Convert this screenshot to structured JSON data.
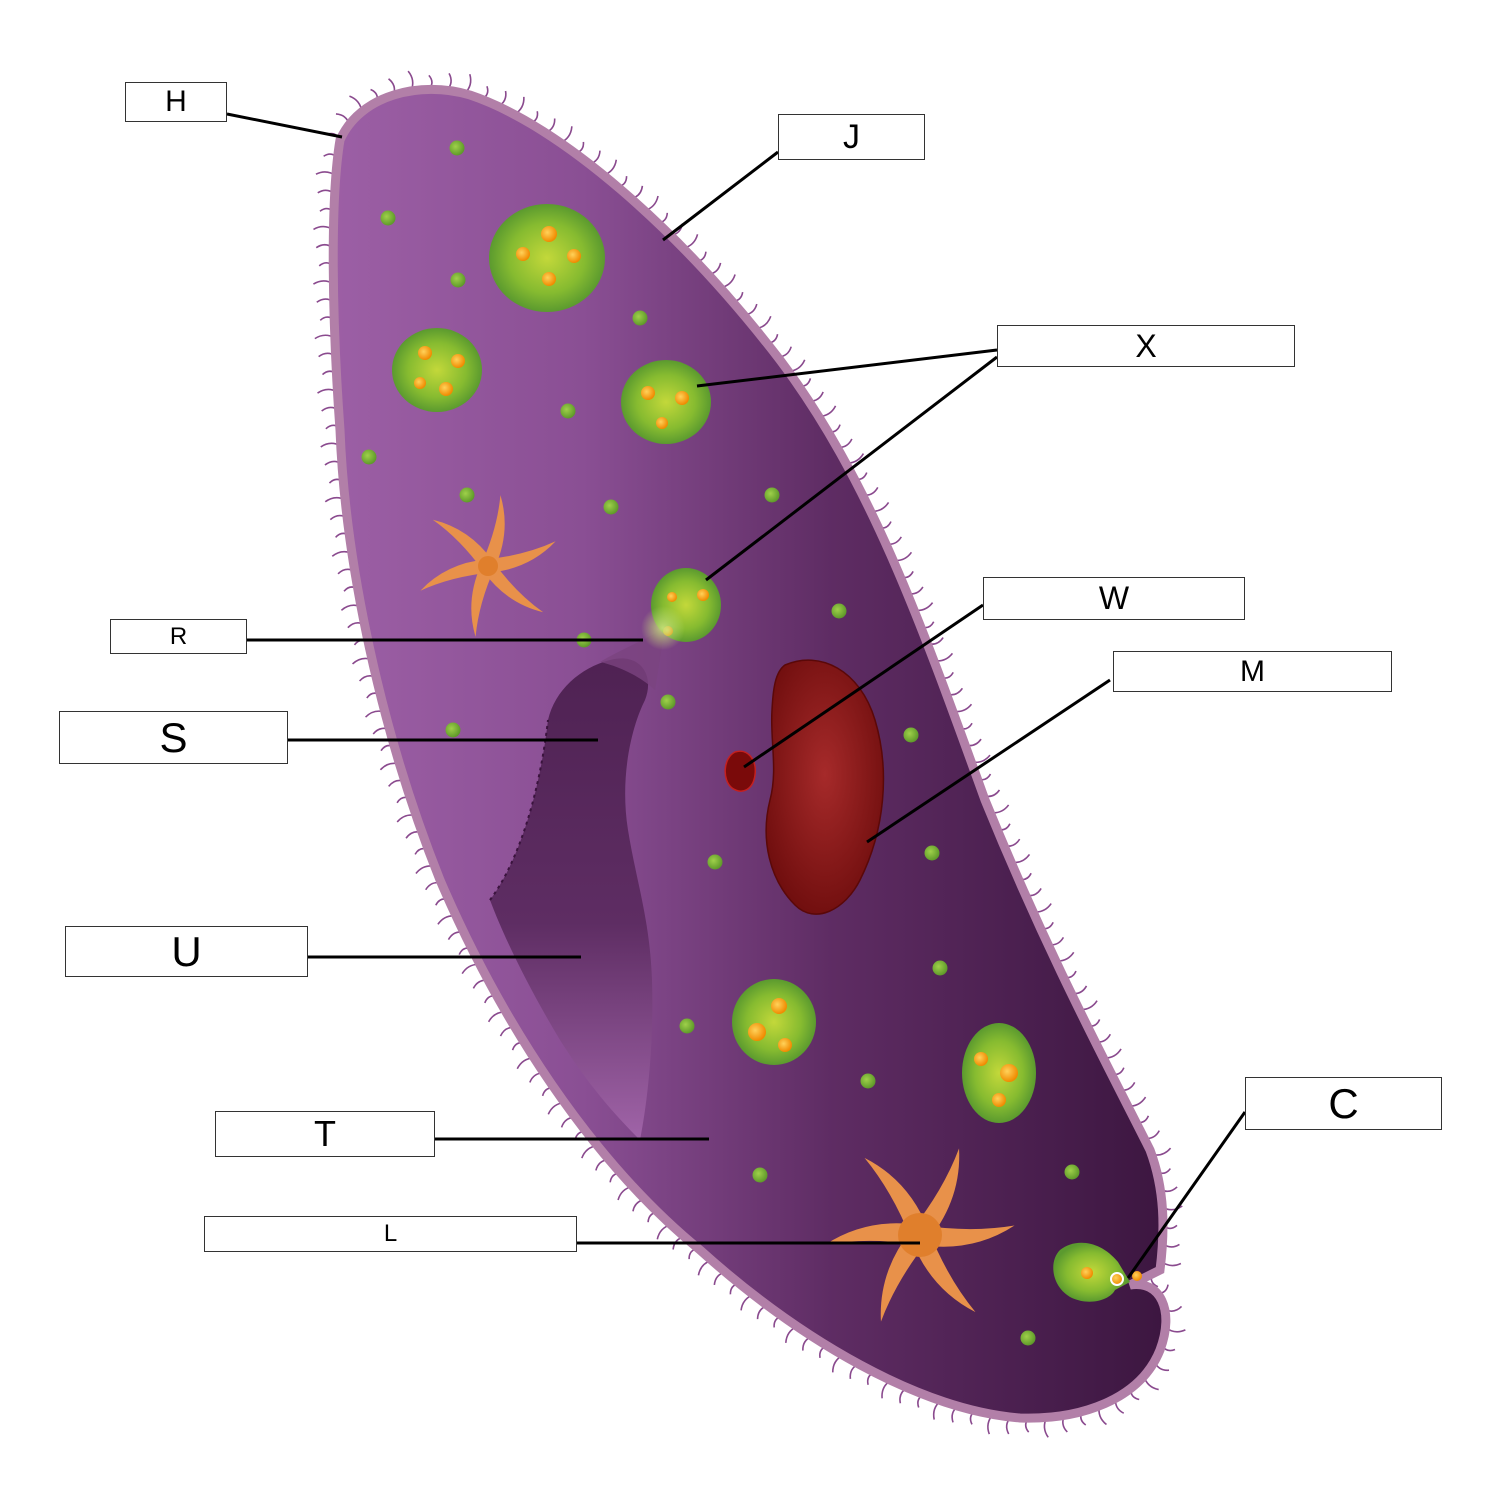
{
  "labels": {
    "H": "H",
    "J": "J",
    "X": "X",
    "W": "W",
    "M": "M",
    "R": "R",
    "S": "S",
    "U": "U",
    "T": "T",
    "L": "L",
    "C": "C"
  },
  "colors": {
    "body_light": "#9a5fa3",
    "body_dark": "#3f1940",
    "pellicle": "#b27fa8",
    "cilia": "#8a4a8e",
    "food_vacuole": "#6fae2f",
    "food_particle": "#f5a623",
    "macronucleus": "#8b1a1a",
    "contractile_vacuole": "#e8914a",
    "leader_line": "#000000"
  }
}
